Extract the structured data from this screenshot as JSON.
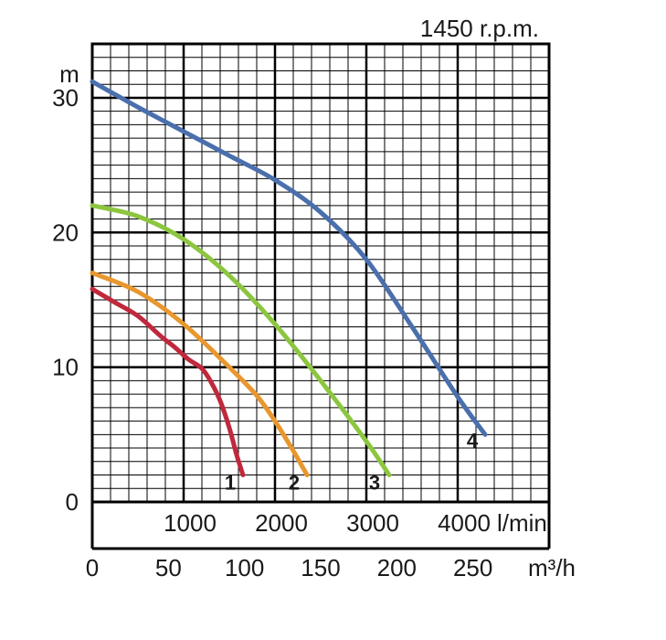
{
  "chart_data": {
    "type": "line",
    "title": "1450 r.p.m.",
    "y_unit": "m",
    "x_unit_flow": "l/min",
    "x_unit_m3h": "m³/h",
    "ylim": [
      0,
      34
    ],
    "xlim_lmin": [
      0,
      5000
    ],
    "xlim_m3h": [
      0,
      300
    ],
    "yticks": [
      "0",
      "10",
      "20",
      "30"
    ],
    "xticks_lmin": [
      "1000",
      "2000",
      "3000",
      "4000"
    ],
    "xticks_m3h": [
      "0",
      "50",
      "100",
      "150",
      "200",
      "250"
    ],
    "grid": true,
    "series": [
      {
        "name": "1",
        "color": "#c0283c",
        "x": [
          0,
          250,
          500,
          750,
          900,
          1050,
          1200,
          1300,
          1400,
          1500,
          1580,
          1650
        ],
        "y": [
          15.8,
          14.8,
          13.8,
          12.3,
          11.5,
          10.6,
          9.9,
          8.9,
          7.5,
          5.5,
          3.5,
          2.0
        ]
      },
      {
        "name": "2",
        "color": "#e8972e",
        "x": [
          0,
          500,
          1000,
          1500,
          1800,
          2000,
          2200,
          2350
        ],
        "y": [
          17.0,
          15.6,
          13.2,
          10.0,
          7.9,
          6.0,
          3.8,
          2.0
        ]
      },
      {
        "name": "3",
        "color": "#8cc63f",
        "x": [
          0,
          500,
          1000,
          1500,
          2000,
          2500,
          3000,
          3250
        ],
        "y": [
          22.0,
          21.2,
          19.5,
          16.8,
          13.2,
          9.0,
          4.5,
          2.0
        ]
      },
      {
        "name": "4",
        "color": "#4a6fad",
        "x": [
          0,
          500,
          1000,
          1500,
          2000,
          2500,
          3000,
          3500,
          4000,
          4300
        ],
        "y": [
          31.2,
          29.3,
          27.5,
          25.7,
          23.9,
          21.5,
          18.0,
          13.0,
          7.8,
          5.0
        ]
      }
    ]
  }
}
